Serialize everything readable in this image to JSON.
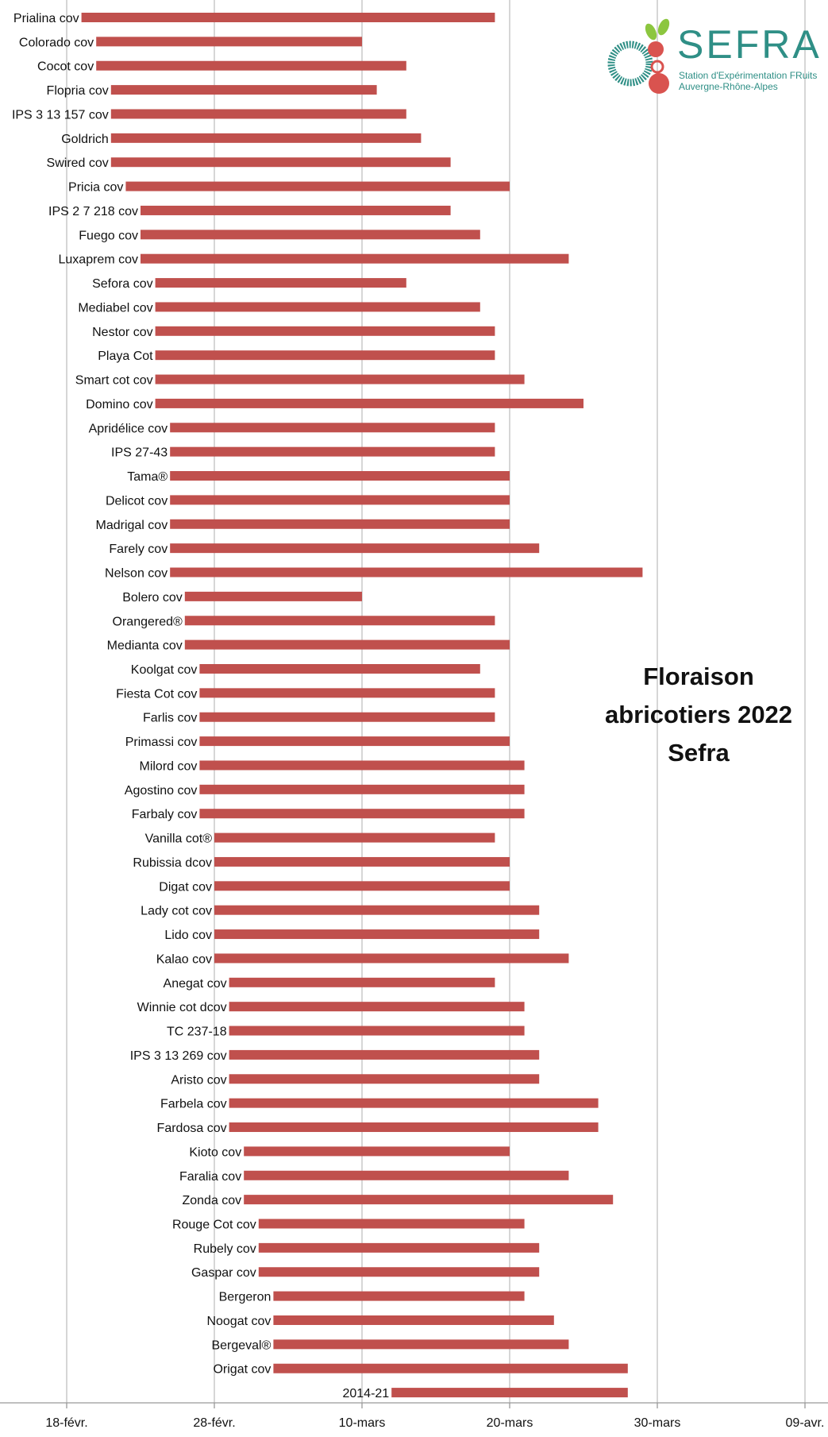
{
  "chart_data": {
    "type": "bar",
    "orientation": "horizontal-range",
    "title_lines": [
      "Floraison",
      "abricotiers 2022",
      "Sefra"
    ],
    "x_ticks": [
      "18-févr.",
      "28-févr.",
      "10-mars",
      "20-mars",
      "30-mars",
      "09-avr."
    ],
    "x_range": [
      "2022-02-18",
      "2022-04-09"
    ],
    "grid": "vertical",
    "legend": "none",
    "bar_color": "#c0504d",
    "grid_color": "#bfbfbf",
    "axis_color": "#999999",
    "bars": [
      {
        "label": "Prialina cov",
        "start": "2022-02-19",
        "end": "2022-03-19"
      },
      {
        "label": "Colorado cov",
        "start": "2022-02-20",
        "end": "2022-03-10"
      },
      {
        "label": "Cocot cov",
        "start": "2022-02-20",
        "end": "2022-03-13"
      },
      {
        "label": "Flopria cov",
        "start": "2022-02-21",
        "end": "2022-03-11"
      },
      {
        "label": "IPS 3 13 157 cov",
        "start": "2022-02-21",
        "end": "2022-03-13"
      },
      {
        "label": "Goldrich",
        "start": "2022-02-21",
        "end": "2022-03-14"
      },
      {
        "label": "Swired cov",
        "start": "2022-02-21",
        "end": "2022-03-16"
      },
      {
        "label": "Pricia cov",
        "start": "2022-02-22",
        "end": "2022-03-20"
      },
      {
        "label": "IPS 2 7 218 cov",
        "start": "2022-02-23",
        "end": "2022-03-16"
      },
      {
        "label": "Fuego cov",
        "start": "2022-02-23",
        "end": "2022-03-18"
      },
      {
        "label": "Luxaprem cov",
        "start": "2022-02-23",
        "end": "2022-03-24"
      },
      {
        "label": "Sefora cov",
        "start": "2022-02-24",
        "end": "2022-03-13"
      },
      {
        "label": "Mediabel cov",
        "start": "2022-02-24",
        "end": "2022-03-18"
      },
      {
        "label": "Nestor cov",
        "start": "2022-02-24",
        "end": "2022-03-19"
      },
      {
        "label": "Playa Cot",
        "start": "2022-02-24",
        "end": "2022-03-19"
      },
      {
        "label": "Smart cot cov",
        "start": "2022-02-24",
        "end": "2022-03-21"
      },
      {
        "label": "Domino cov",
        "start": "2022-02-24",
        "end": "2022-03-25"
      },
      {
        "label": "Apridélice cov",
        "start": "2022-02-25",
        "end": "2022-03-19"
      },
      {
        "label": "IPS 27-43",
        "start": "2022-02-25",
        "end": "2022-03-19"
      },
      {
        "label": "Tama®",
        "start": "2022-02-25",
        "end": "2022-03-20"
      },
      {
        "label": "Delicot cov",
        "start": "2022-02-25",
        "end": "2022-03-20"
      },
      {
        "label": "Madrigal cov",
        "start": "2022-02-25",
        "end": "2022-03-20"
      },
      {
        "label": "Farely cov",
        "start": "2022-02-25",
        "end": "2022-03-22"
      },
      {
        "label": "Nelson cov",
        "start": "2022-02-25",
        "end": "2022-03-29"
      },
      {
        "label": "Bolero cov",
        "start": "2022-02-26",
        "end": "2022-03-10"
      },
      {
        "label": "Orangered®",
        "start": "2022-02-26",
        "end": "2022-03-19"
      },
      {
        "label": "Medianta cov",
        "start": "2022-02-26",
        "end": "2022-03-20"
      },
      {
        "label": "Koolgat cov",
        "start": "2022-02-27",
        "end": "2022-03-18"
      },
      {
        "label": "Fiesta Cot cov",
        "start": "2022-02-27",
        "end": "2022-03-19"
      },
      {
        "label": "Farlis cov",
        "start": "2022-02-27",
        "end": "2022-03-19"
      },
      {
        "label": "Primassi cov",
        "start": "2022-02-27",
        "end": "2022-03-20"
      },
      {
        "label": "Milord cov",
        "start": "2022-02-27",
        "end": "2022-03-21"
      },
      {
        "label": "Agostino cov",
        "start": "2022-02-27",
        "end": "2022-03-21"
      },
      {
        "label": "Farbaly cov",
        "start": "2022-02-27",
        "end": "2022-03-21"
      },
      {
        "label": "Vanilla cot®",
        "start": "2022-02-28",
        "end": "2022-03-19"
      },
      {
        "label": "Rubissia dcov",
        "start": "2022-02-28",
        "end": "2022-03-20"
      },
      {
        "label": "Digat cov",
        "start": "2022-02-28",
        "end": "2022-03-20"
      },
      {
        "label": "Lady cot cov",
        "start": "2022-02-28",
        "end": "2022-03-22"
      },
      {
        "label": "Lido cov",
        "start": "2022-02-28",
        "end": "2022-03-22"
      },
      {
        "label": "Kalao cov",
        "start": "2022-02-28",
        "end": "2022-03-24"
      },
      {
        "label": "Anegat cov",
        "start": "2022-03-01",
        "end": "2022-03-19"
      },
      {
        "label": "Winnie cot dcov",
        "start": "2022-03-01",
        "end": "2022-03-21"
      },
      {
        "label": "TC 237-18",
        "start": "2022-03-01",
        "end": "2022-03-21"
      },
      {
        "label": "IPS 3 13 269 cov",
        "start": "2022-03-01",
        "end": "2022-03-22"
      },
      {
        "label": "Aristo cov",
        "start": "2022-03-01",
        "end": "2022-03-22"
      },
      {
        "label": "Farbela cov",
        "start": "2022-03-01",
        "end": "2022-03-26"
      },
      {
        "label": "Fardosa cov",
        "start": "2022-03-01",
        "end": "2022-03-26"
      },
      {
        "label": "Kioto cov",
        "start": "2022-03-02",
        "end": "2022-03-20"
      },
      {
        "label": "Faralia cov",
        "start": "2022-03-02",
        "end": "2022-03-24"
      },
      {
        "label": "Zonda cov",
        "start": "2022-03-02",
        "end": "2022-03-27"
      },
      {
        "label": "Rouge Cot cov",
        "start": "2022-03-03",
        "end": "2022-03-21"
      },
      {
        "label": "Rubely cov",
        "start": "2022-03-03",
        "end": "2022-03-22"
      },
      {
        "label": "Gaspar cov",
        "start": "2022-03-03",
        "end": "2022-03-22"
      },
      {
        "label": "Bergeron",
        "start": "2022-03-04",
        "end": "2022-03-21"
      },
      {
        "label": "Noogat cov",
        "start": "2022-03-04",
        "end": "2022-03-23"
      },
      {
        "label": "Bergeval®",
        "start": "2022-03-04",
        "end": "2022-03-24"
      },
      {
        "label": "Origat  cov",
        "start": "2022-03-04",
        "end": "2022-03-28"
      },
      {
        "label": "2014-21",
        "start": "2022-03-12",
        "end": "2022-03-28"
      }
    ]
  },
  "logo": {
    "name": "SEFRA",
    "subtitle_line1": "Station d'Expérimentation FRuits",
    "subtitle_line2": "Auvergne-Rhône-Alpes",
    "teal": "#2f8f86",
    "red": "#d9534f",
    "green": "#8cc63f",
    "icon": "sefra-logo-mark"
  }
}
